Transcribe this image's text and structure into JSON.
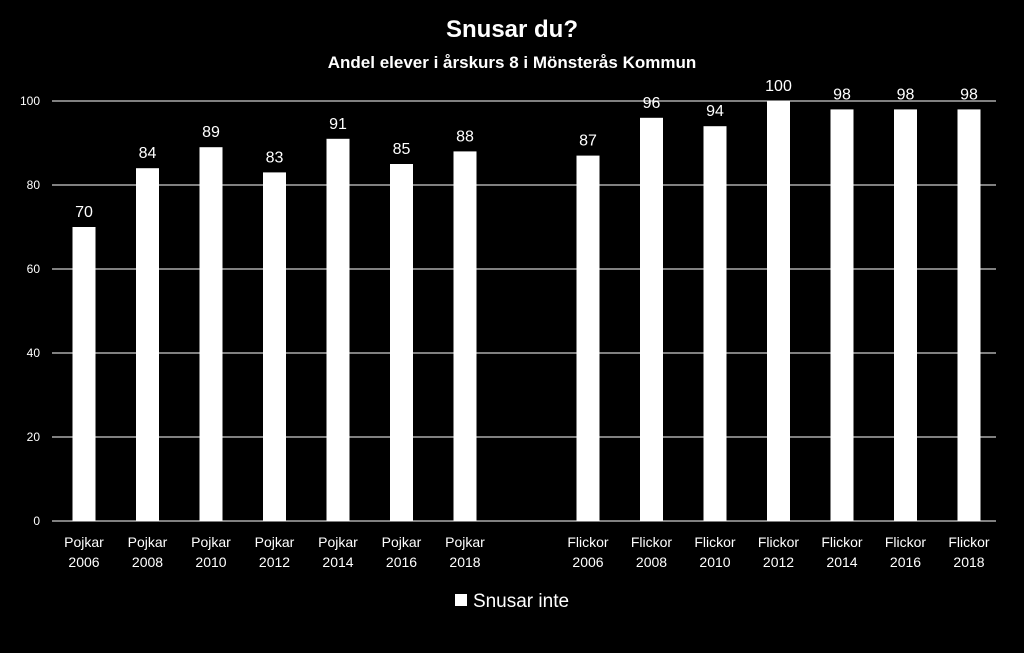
{
  "chart_data": {
    "type": "bar",
    "title": "Snusar du?",
    "subtitle": "Andel elever i årskurs 8 i Mönsterås Kommun",
    "categories": [
      [
        "Pojkar",
        "2006"
      ],
      [
        "Pojkar",
        "2008"
      ],
      [
        "Pojkar",
        "2010"
      ],
      [
        "Pojkar",
        "2012"
      ],
      [
        "Pojkar",
        "2014"
      ],
      [
        "Pojkar",
        "2016"
      ],
      [
        "Pojkar",
        "2018"
      ],
      [
        "Flickor",
        "2006"
      ],
      [
        "Flickor",
        "2008"
      ],
      [
        "Flickor",
        "2010"
      ],
      [
        "Flickor",
        "2012"
      ],
      [
        "Flickor",
        "2014"
      ],
      [
        "Flickor",
        "2016"
      ],
      [
        "Flickor",
        "2018"
      ]
    ],
    "series": [
      {
        "name": "Snusar inte",
        "values": [
          70,
          84,
          89,
          83,
          91,
          85,
          88,
          87,
          96,
          94,
          100,
          98,
          98,
          98
        ]
      }
    ],
    "ylim": [
      0,
      100
    ],
    "yticks": [
      0,
      20,
      40,
      60,
      80,
      100
    ],
    "grid": true,
    "legend_position": "bottom",
    "colors": {
      "background": "#000000",
      "bar": "#ffffff",
      "text": "#ffffff",
      "grid": "#ffffff"
    }
  }
}
